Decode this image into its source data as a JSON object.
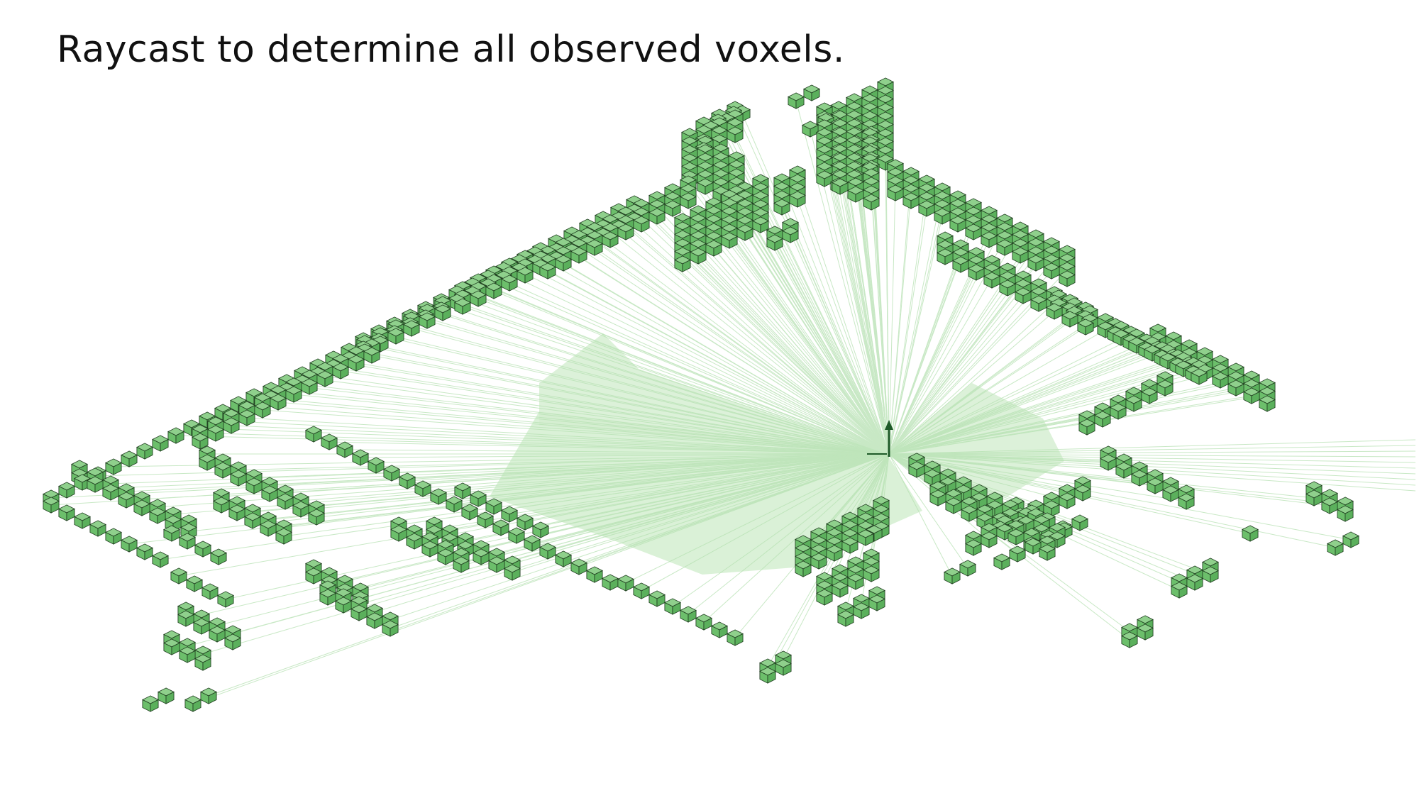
{
  "slide": {
    "title": "Raycast to determine all observed voxels."
  },
  "scene": {
    "description_colors": {
      "voxel_top": "#8fd08c",
      "voxel_left": "#6cbf6b",
      "voxel_right": "#5bb05c",
      "voxel_edge": "#1f3d1f",
      "ray_fill": "#c9ebc6",
      "ray_line": "#b6e1b2",
      "sensor_arrow": "#1e5a28"
    },
    "icons": {
      "sensor": "up-arrow-icon"
    }
  }
}
